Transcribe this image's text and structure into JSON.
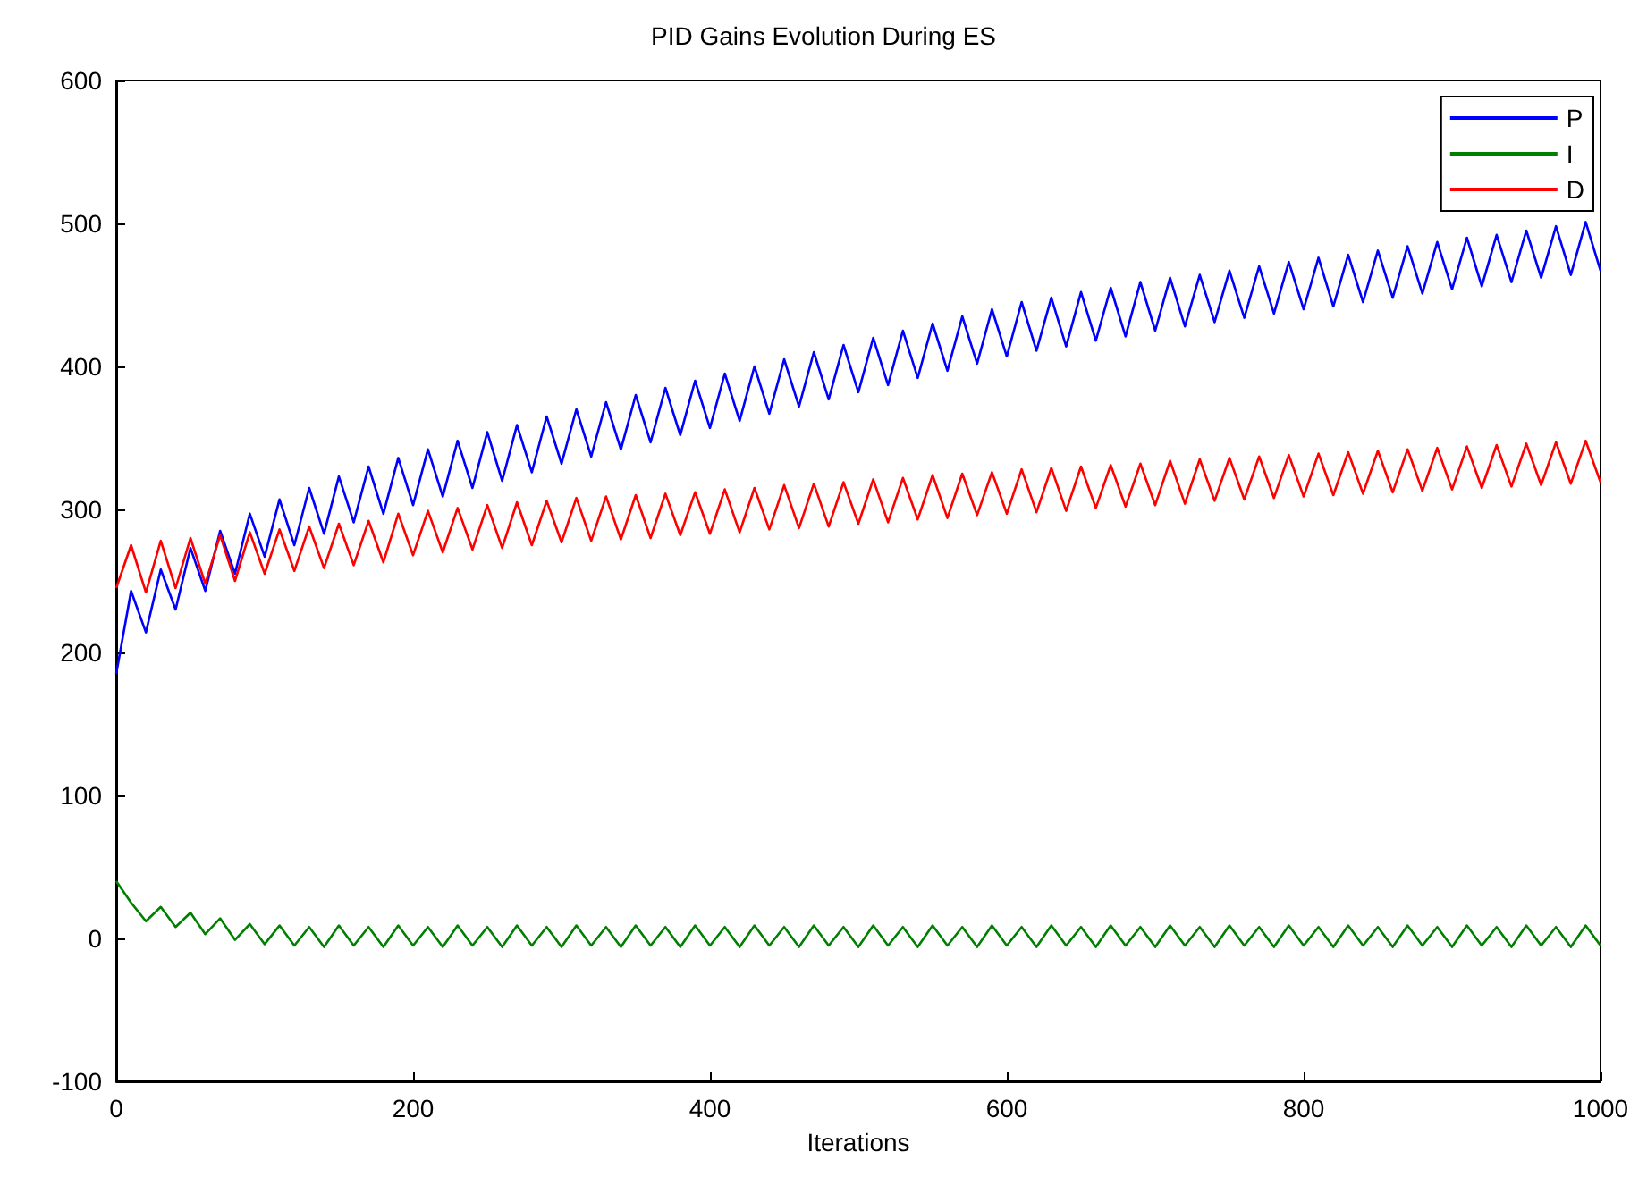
{
  "chart_data": {
    "type": "line",
    "title": "PID Gains Evolution During ES",
    "xlabel": "Iterations",
    "x": [
      0,
      10,
      20,
      30,
      40,
      50,
      60,
      70,
      80,
      90,
      100,
      110,
      120,
      130,
      140,
      150,
      160,
      170,
      180,
      190,
      200,
      210,
      220,
      230,
      240,
      250,
      260,
      270,
      280,
      290,
      300,
      310,
      320,
      330,
      340,
      350,
      360,
      370,
      380,
      390,
      400,
      410,
      420,
      430,
      440,
      450,
      460,
      470,
      480,
      490,
      500,
      510,
      520,
      530,
      540,
      550,
      560,
      570,
      580,
      590,
      600,
      610,
      620,
      630,
      640,
      650,
      660,
      670,
      680,
      690,
      700,
      710,
      720,
      730,
      740,
      750,
      760,
      770,
      780,
      790,
      800,
      810,
      820,
      830,
      840,
      850,
      860,
      870,
      880,
      890,
      900,
      910,
      920,
      930,
      940,
      950,
      960,
      970,
      980,
      990,
      1000
    ],
    "series": [
      {
        "name": "P",
        "color": "#0000ff",
        "values": [
          185,
          243,
          214,
          258,
          230,
          273,
          243,
          285,
          255,
          297,
          267,
          307,
          275,
          315,
          283,
          323,
          291,
          330,
          297,
          336,
          303,
          342,
          309,
          348,
          315,
          354,
          320,
          359,
          326,
          365,
          332,
          370,
          337,
          375,
          342,
          380,
          347,
          385,
          352,
          390,
          357,
          395,
          362,
          400,
          367,
          405,
          372,
          410,
          377,
          415,
          382,
          420,
          387,
          425,
          392,
          430,
          397,
          435,
          402,
          440,
          407,
          445,
          411,
          448,
          414,
          452,
          418,
          455,
          421,
          459,
          425,
          462,
          428,
          464,
          431,
          467,
          434,
          470,
          437,
          473,
          440,
          476,
          442,
          478,
          445,
          481,
          448,
          484,
          451,
          487,
          454,
          490,
          456,
          492,
          459,
          495,
          462,
          498,
          464,
          501,
          467
        ]
      },
      {
        "name": "I",
        "color": "#008000",
        "values": [
          40,
          25,
          12,
          22,
          8,
          18,
          3,
          14,
          -1,
          10,
          -4,
          9,
          -5,
          8,
          -6,
          9,
          -5,
          8,
          -6,
          9,
          -5,
          8,
          -6,
          9,
          -5,
          8,
          -6,
          9,
          -5,
          8,
          -6,
          9,
          -5,
          8,
          -6,
          9,
          -5,
          8,
          -6,
          9,
          -5,
          8,
          -6,
          9,
          -5,
          8,
          -6,
          9,
          -5,
          8,
          -6,
          9,
          -5,
          8,
          -6,
          9,
          -5,
          8,
          -6,
          9,
          -5,
          8,
          -6,
          9,
          -5,
          8,
          -6,
          9,
          -5,
          8,
          -6,
          9,
          -5,
          8,
          -6,
          9,
          -5,
          8,
          -6,
          9,
          -5,
          8,
          -6,
          9,
          -5,
          8,
          -6,
          9,
          -5,
          8,
          -6,
          9,
          -5,
          8,
          -6,
          9,
          -5,
          8,
          -6,
          9,
          -5
        ]
      },
      {
        "name": "D",
        "color": "#ff0000",
        "values": [
          245,
          275,
          242,
          278,
          245,
          280,
          248,
          282,
          250,
          284,
          255,
          286,
          257,
          288,
          259,
          290,
          261,
          292,
          263,
          297,
          268,
          299,
          270,
          301,
          272,
          303,
          273,
          305,
          275,
          306,
          277,
          308,
          278,
          309,
          279,
          310,
          280,
          311,
          282,
          312,
          283,
          314,
          284,
          315,
          286,
          317,
          287,
          318,
          288,
          319,
          290,
          321,
          291,
          322,
          293,
          324,
          294,
          325,
          296,
          326,
          297,
          328,
          298,
          329,
          299,
          330,
          301,
          331,
          302,
          332,
          303,
          334,
          304,
          335,
          306,
          336,
          307,
          337,
          308,
          338,
          309,
          339,
          310,
          340,
          311,
          341,
          312,
          342,
          313,
          343,
          314,
          344,
          315,
          345,
          316,
          346,
          317,
          347,
          318,
          348,
          319
        ]
      }
    ],
    "xlim": [
      0,
      1000
    ],
    "xticks": [
      0,
      200,
      400,
      600,
      800,
      1000
    ],
    "ylim": [
      -100,
      600
    ],
    "yticks": [
      -100,
      0,
      100,
      200,
      300,
      400,
      500,
      600
    ],
    "grid": false,
    "legend": "top right",
    "marker": "none",
    "line_style": "solid"
  }
}
